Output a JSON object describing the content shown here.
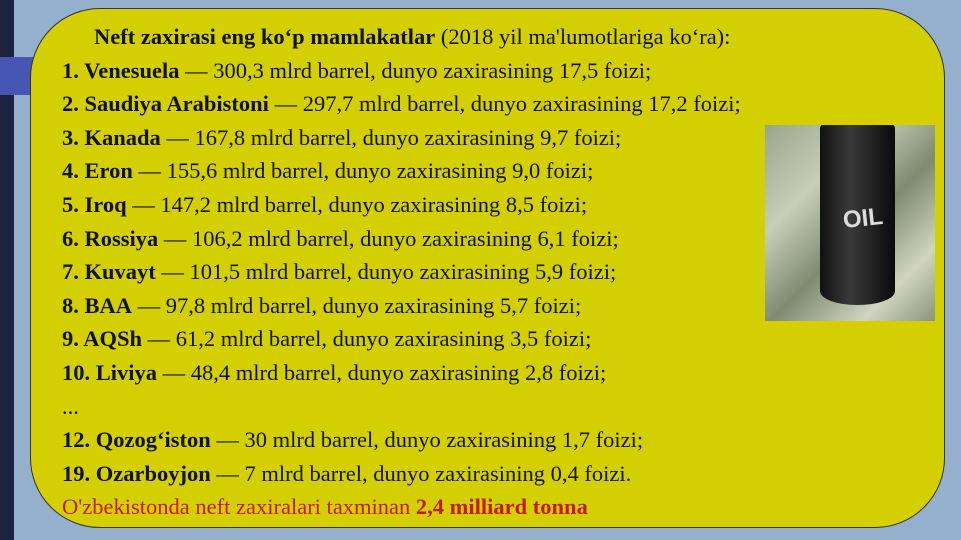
{
  "title": {
    "bold": "Neft zaxirasi eng ko‘p mamlakatlar",
    "rest": " (2018 yil ma'lumotlariga ko‘ra):"
  },
  "items": [
    {
      "num": "1",
      "name": ". Venesuela",
      "text": " — 300,3 mlrd barrel, dunyo zaxirasining 17,5 foizi;"
    },
    {
      "num": "2.",
      "name": " Saudiya Arabistoni",
      "text": " — 297,7 mlrd barrel, dunyo zaxirasining 17,2 foizi;"
    },
    {
      "num": "3.",
      "name": " Kanada",
      "text": " — 167,8 mlrd barrel, dunyo zaxirasining 9,7 foizi;"
    },
    {
      "num": "4.",
      "name": " Eron",
      "text": " — 155,6 mlrd barrel, dunyo zaxirasining 9,0 foizi;"
    },
    {
      "num": "5.",
      "name": " Iroq",
      "text": " — 147,2 mlrd barrel, dunyo zaxirasining 8,5 foizi;"
    },
    {
      "num": "6.",
      "name": " Rossiya",
      "text": " — 106,2 mlrd barrel, dunyo zaxirasining 6,1 foizi;"
    },
    {
      "num": "7.",
      "name": " Kuvayt",
      "text": " — 101,5 mlrd barrel, dunyo zaxirasining 5,9 foizi;"
    },
    {
      "num": "8.",
      "name": " BAA",
      "text": " — 97,8 mlrd barrel, dunyo zaxirasining 5,7 foizi;"
    },
    {
      "num": "9.",
      "name": " AQSh",
      "text": " — 61,2 mlrd barrel, dunyo zaxirasining 3,5 foizi;"
    },
    {
      "num": "10.",
      "name": " Liviya",
      "text": " — 48,4 mlrd barrel, dunyo zaxirasining 2,8 foizi;"
    }
  ],
  "ellipsis": "...",
  "items2": [
    {
      "num": "12.",
      "name": " Qozog‘iston",
      "text": " — 30 mlrd barrel, dunyo zaxirasining 1,7 foizi;"
    },
    {
      "num": "19.",
      "name": " Ozarboyjon",
      "text": " — 7 mlrd barrel, dunyo zaxirasining 0,4 foizi."
    }
  ],
  "footer": {
    "text": "O'zbekistonda neft zaxiralari taxminan ",
    "bold": "2,4 milliard tonna"
  },
  "image": {
    "label": "OIL"
  },
  "colors": {
    "box": "#d3cf00",
    "background": "#95b0cd",
    "accent": "#c41a1a"
  }
}
